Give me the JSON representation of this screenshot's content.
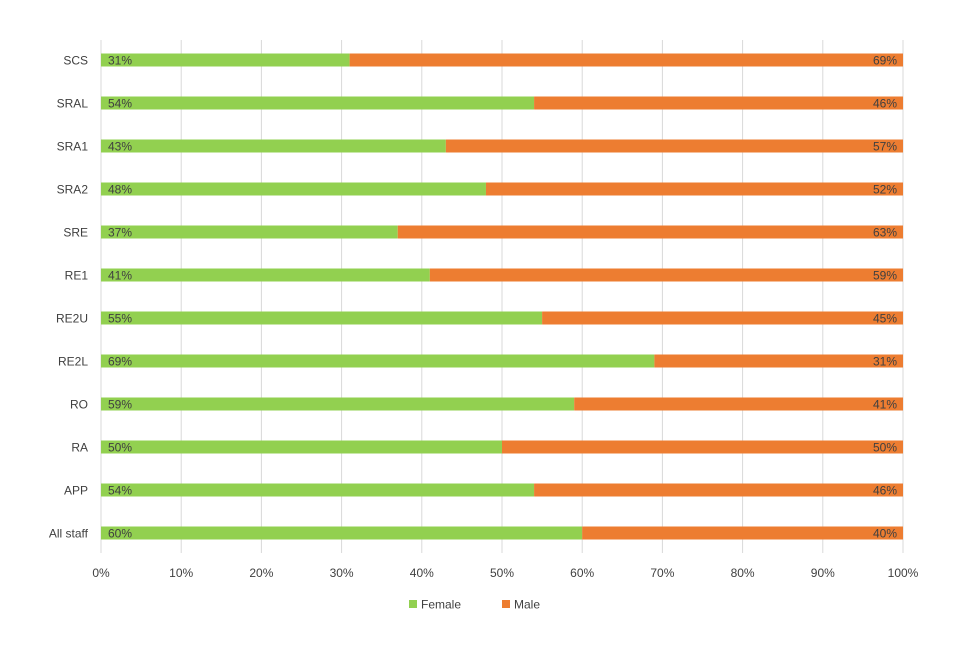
{
  "chart_data": {
    "type": "bar",
    "orientation": "horizontal",
    "stacked": "100%",
    "title": "",
    "xlabel": "",
    "ylabel": "",
    "categories": [
      "SCS",
      "SRAL",
      "SRA1",
      "SRA2",
      "SRE",
      "RE1",
      "RE2U",
      "RE2L",
      "RO",
      "RA",
      "APP",
      "All staff"
    ],
    "series": [
      {
        "name": "Female",
        "color": "#92D050",
        "values": [
          31,
          54,
          43,
          48,
          37,
          41,
          55,
          69,
          59,
          50,
          54,
          60
        ],
        "labels": [
          "31%",
          "54%",
          "43%",
          "48%",
          "37%",
          "41%",
          "55%",
          "69%",
          "59%",
          "50%",
          "54%",
          "60%"
        ]
      },
      {
        "name": "Male",
        "color": "#ED7D31",
        "values": [
          69,
          46,
          57,
          52,
          63,
          59,
          45,
          31,
          41,
          50,
          46,
          40
        ],
        "labels": [
          "69%",
          "46%",
          "57%",
          "52%",
          "63%",
          "59%",
          "45%",
          "31%",
          "41%",
          "50%",
          "46%",
          "40%"
        ]
      }
    ],
    "xlim": [
      0,
      100
    ],
    "xticks": [
      0,
      10,
      20,
      30,
      40,
      50,
      60,
      70,
      80,
      90,
      100
    ],
    "xtick_labels": [
      "0%",
      "10%",
      "20%",
      "30%",
      "40%",
      "50%",
      "60%",
      "70%",
      "80%",
      "90%",
      "100%"
    ],
    "grid": "vertical",
    "gridline_color": "#D9D9D9",
    "legend_position": "bottom",
    "label_color": "#404040"
  }
}
